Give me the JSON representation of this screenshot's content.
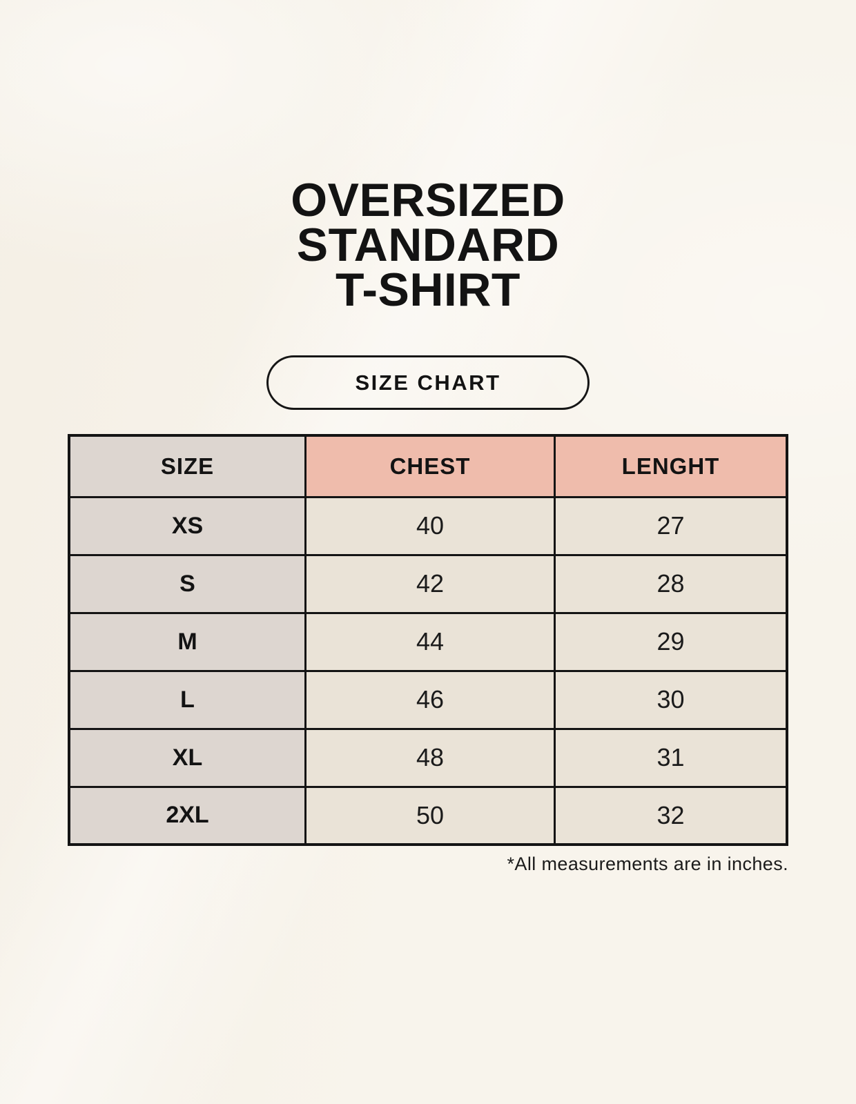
{
  "page": {
    "title_lines": [
      "OVERSIZED",
      "STANDARD",
      "T-SHIRT"
    ],
    "badge_label": "SIZE CHART",
    "footnote": "*All measurements are in inches."
  },
  "chart_data": {
    "type": "table",
    "title": "OVERSIZED STANDARD T-SHIRT",
    "subtitle": "SIZE CHART",
    "columns": [
      "SIZE",
      "CHEST",
      "LENGHT"
    ],
    "rows": [
      [
        "XS",
        "40",
        "27"
      ],
      [
        "S",
        "42",
        "28"
      ],
      [
        "M",
        "44",
        "29"
      ],
      [
        "L",
        "46",
        "30"
      ],
      [
        "XL",
        "48",
        "31"
      ],
      [
        "2XL",
        "50",
        "32"
      ]
    ],
    "units_note": "*All measurements are in inches."
  },
  "colors": {
    "background": "#f8f4ec",
    "header_accent_pink": "#efbcac",
    "size_column_gray": "#ddd6d0",
    "cell_cream": "#eae3d7",
    "border_black": "#141414",
    "text_black": "#131313"
  }
}
